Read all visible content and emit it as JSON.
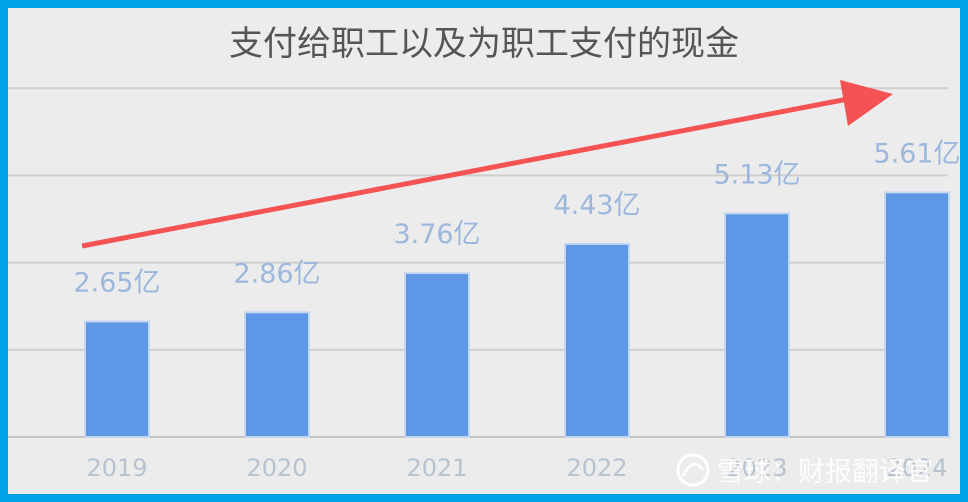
{
  "chart_data": {
    "type": "bar",
    "title": "支付给职工以及为职工支付的现金",
    "categories": [
      "2019",
      "2020",
      "2021",
      "2022",
      "2023",
      "2024"
    ],
    "values": [
      2.65,
      2.86,
      3.76,
      4.43,
      5.13,
      5.61
    ],
    "value_labels": [
      "2.65亿",
      "2.86亿",
      "3.76亿",
      "4.43亿",
      "5.13亿",
      "5.61亿"
    ],
    "unit": "亿",
    "xlabel": "",
    "ylabel": "",
    "ylim": [
      0,
      8
    ],
    "grid": true,
    "legend": "none",
    "bar_color": "#5e97e6",
    "annotation": "trend-arrow"
  },
  "colors": {
    "frame": "#00a3e8",
    "background": "#ececec",
    "arrow": "#f55353"
  },
  "watermark": {
    "text": "雪球：财报翻译官",
    "icon": "snowball-logo-icon"
  }
}
